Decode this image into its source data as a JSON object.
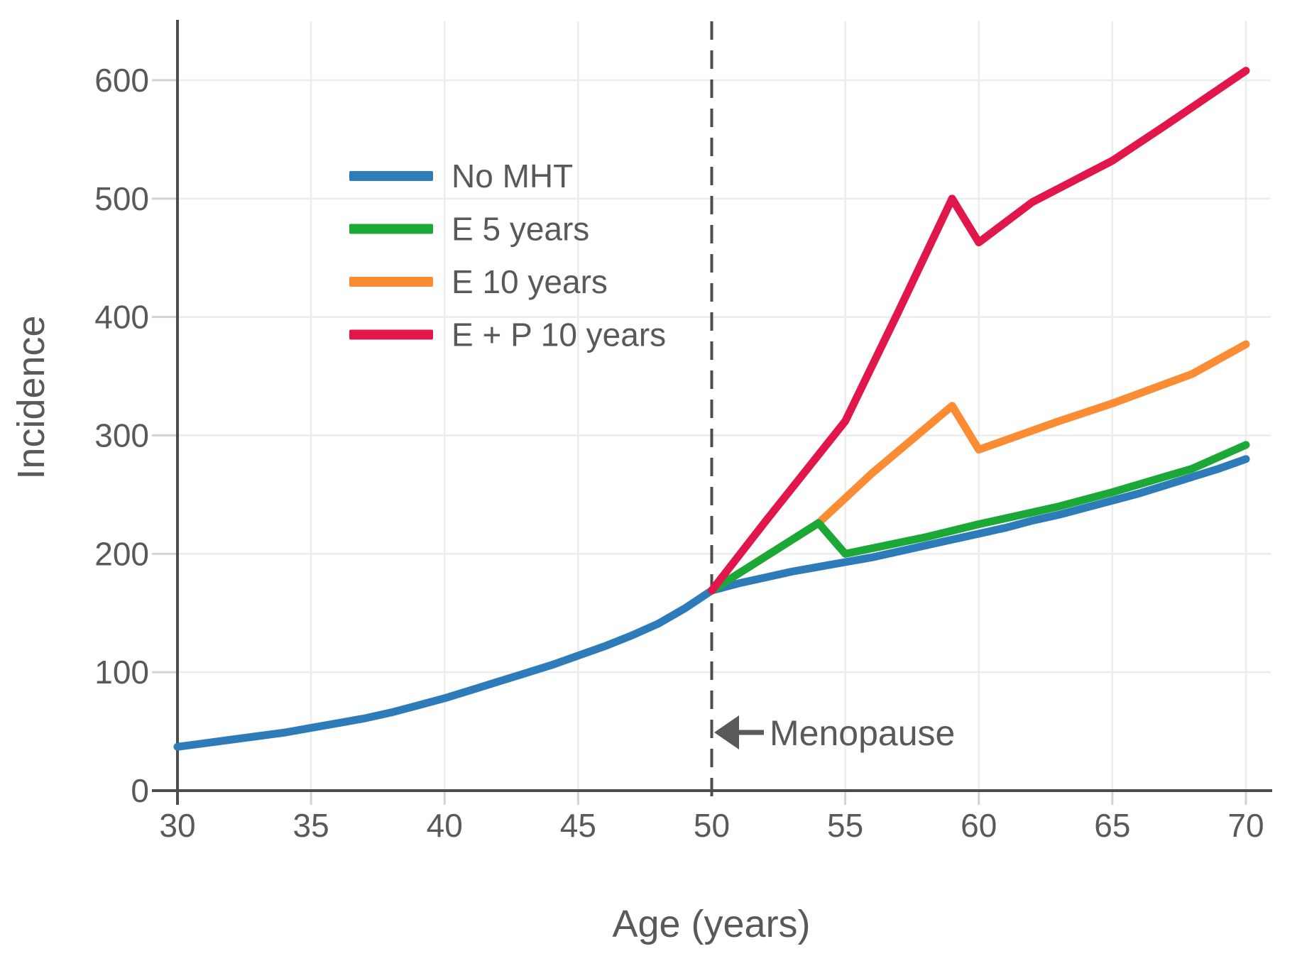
{
  "style": {
    "text_color": "#595959",
    "axis_color": "#4d4d4d",
    "grid_color": "#ececec",
    "tick_color": "#d2d2d2",
    "background": "#ffffff"
  },
  "annotation": {
    "menopause_label": "Menopause"
  },
  "chart_data": {
    "type": "line",
    "title": "",
    "xlabel": "Age (years)",
    "ylabel": "Incidence",
    "xlim": [
      30,
      70.9
    ],
    "ylim": [
      0,
      650
    ],
    "x_ticks": [
      30,
      35,
      40,
      45,
      50,
      55,
      60,
      65,
      70
    ],
    "y_ticks": [
      0,
      100,
      200,
      300,
      400,
      500,
      600
    ],
    "grid": true,
    "legend_position": "upper-left-inside",
    "series": [
      {
        "name": "No MHT",
        "color": "#2e7bb9",
        "points": [
          [
            30,
            37
          ],
          [
            31,
            40
          ],
          [
            32,
            43
          ],
          [
            33,
            46
          ],
          [
            34,
            49
          ],
          [
            35,
            53
          ],
          [
            36,
            57
          ],
          [
            37,
            61
          ],
          [
            38,
            66
          ],
          [
            39,
            72
          ],
          [
            40,
            78
          ],
          [
            41,
            85
          ],
          [
            42,
            92
          ],
          [
            43,
            99
          ],
          [
            44,
            106
          ],
          [
            45,
            114
          ],
          [
            46,
            122
          ],
          [
            47,
            131
          ],
          [
            48,
            141
          ],
          [
            49,
            154
          ],
          [
            50,
            169
          ],
          [
            51,
            175
          ],
          [
            52,
            180
          ],
          [
            53,
            185
          ],
          [
            54,
            189
          ],
          [
            55,
            193
          ],
          [
            56,
            197
          ],
          [
            57,
            202
          ],
          [
            58,
            207
          ],
          [
            59,
            212
          ],
          [
            60,
            217
          ],
          [
            61,
            222
          ],
          [
            62,
            228
          ],
          [
            63,
            233
          ],
          [
            64,
            239
          ],
          [
            65,
            245
          ],
          [
            66,
            251
          ],
          [
            67,
            258
          ],
          [
            68,
            265
          ],
          [
            69,
            272
          ],
          [
            70,
            280
          ]
        ]
      },
      {
        "name": "E 5 years",
        "color": "#1ca836",
        "points": [
          [
            50,
            169
          ],
          [
            54,
            226
          ],
          [
            55,
            200
          ],
          [
            58,
            214
          ],
          [
            60,
            225
          ],
          [
            63,
            240
          ],
          [
            65,
            252
          ],
          [
            68,
            272
          ],
          [
            70,
            292
          ]
        ]
      },
      {
        "name": "E 10 years",
        "color": "#fb8c34",
        "points": [
          [
            50,
            169
          ],
          [
            54,
            226
          ],
          [
            56,
            268
          ],
          [
            59,
            325
          ],
          [
            60,
            288
          ],
          [
            63,
            312
          ],
          [
            65,
            327
          ],
          [
            68,
            352
          ],
          [
            70,
            377
          ]
        ]
      },
      {
        "name": "E + P 10 years",
        "color": "#e1174b",
        "points": [
          [
            50,
            169
          ],
          [
            52,
            227
          ],
          [
            55,
            312
          ],
          [
            57,
            405
          ],
          [
            59,
            500
          ],
          [
            60,
            463
          ],
          [
            62,
            497
          ],
          [
            65,
            532
          ],
          [
            67,
            562
          ],
          [
            70,
            608
          ]
        ]
      }
    ],
    "annotations": {
      "menopause_line": {
        "x": 50,
        "style": "dashed",
        "color": "#4d4d4d"
      },
      "menopause_label": {
        "text": "Menopause",
        "arrow": "left",
        "x": 50,
        "y": 49
      }
    }
  }
}
